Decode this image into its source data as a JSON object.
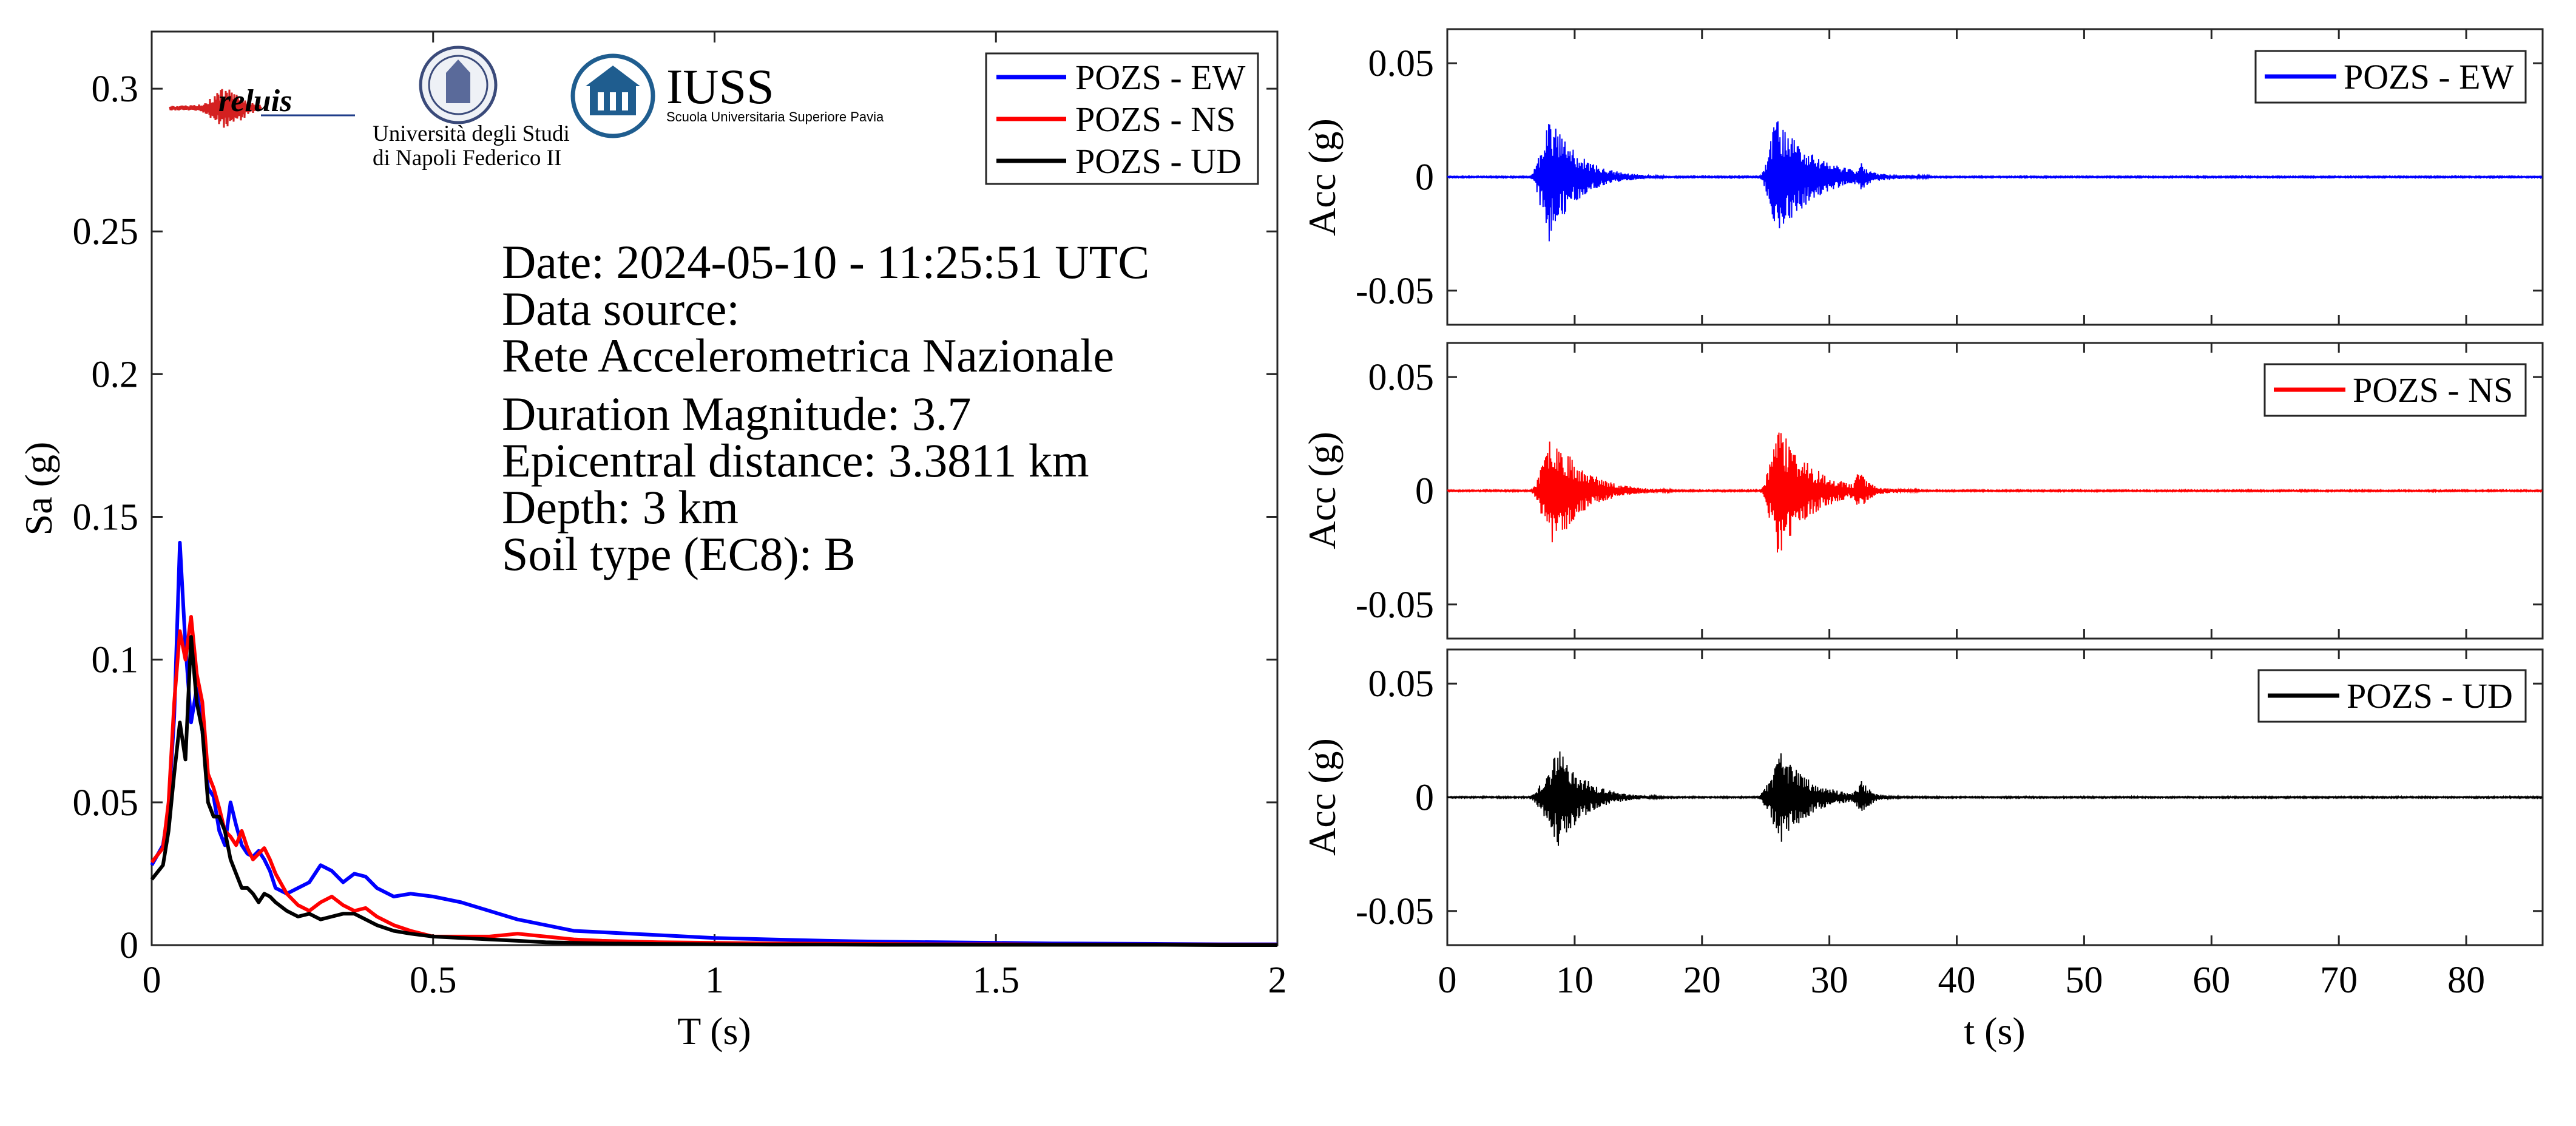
{
  "chart_data": [
    {
      "id": "spectra",
      "type": "line",
      "xlabel": "T (s)",
      "ylabel": "Sa (g)",
      "xlim": [
        0,
        2
      ],
      "ylim": [
        0,
        0.32
      ],
      "xticks": [
        0,
        0.5,
        1,
        1.5,
        2
      ],
      "xtick_labels": [
        "0",
        "0.5",
        "1",
        "1.5",
        "2"
      ],
      "yticks": [
        0,
        0.05,
        0.1,
        0.15,
        0.2,
        0.25,
        0.3
      ],
      "ytick_labels": [
        "0",
        "0.05",
        "0.1",
        "0.15",
        "0.2",
        "0.25",
        "0.3"
      ],
      "legend_position": "top-right",
      "grid": false,
      "series": [
        {
          "name": "POZS - EW",
          "color": "#0000ff",
          "x": [
            0,
            0.02,
            0.03,
            0.04,
            0.05,
            0.06,
            0.07,
            0.08,
            0.09,
            0.1,
            0.11,
            0.12,
            0.13,
            0.14,
            0.15,
            0.16,
            0.17,
            0.18,
            0.19,
            0.2,
            0.21,
            0.22,
            0.24,
            0.26,
            0.28,
            0.3,
            0.32,
            0.34,
            0.36,
            0.38,
            0.4,
            0.43,
            0.46,
            0.5,
            0.55,
            0.6,
            0.65,
            0.7,
            0.75,
            0.8,
            0.9,
            1.0,
            1.1,
            1.2,
            1.3,
            1.4,
            1.5,
            1.6,
            1.7,
            1.8,
            1.9,
            2.0
          ],
          "y": [
            0.028,
            0.035,
            0.048,
            0.08,
            0.141,
            0.105,
            0.078,
            0.09,
            0.075,
            0.055,
            0.052,
            0.04,
            0.035,
            0.05,
            0.042,
            0.035,
            0.032,
            0.031,
            0.033,
            0.03,
            0.026,
            0.02,
            0.018,
            0.02,
            0.022,
            0.028,
            0.026,
            0.022,
            0.025,
            0.024,
            0.02,
            0.017,
            0.018,
            0.017,
            0.015,
            0.012,
            0.009,
            0.007,
            0.005,
            0.0045,
            0.0035,
            0.0025,
            0.002,
            0.0015,
            0.0012,
            0.001,
            0.0008,
            0.0006,
            0.0005,
            0.0004,
            0.0003,
            0.0003
          ]
        },
        {
          "name": "POZS - NS",
          "color": "#ff0000",
          "x": [
            0,
            0.02,
            0.03,
            0.04,
            0.05,
            0.06,
            0.07,
            0.08,
            0.09,
            0.1,
            0.11,
            0.12,
            0.13,
            0.14,
            0.15,
            0.16,
            0.17,
            0.18,
            0.19,
            0.2,
            0.21,
            0.22,
            0.24,
            0.26,
            0.28,
            0.3,
            0.32,
            0.34,
            0.36,
            0.38,
            0.4,
            0.43,
            0.46,
            0.5,
            0.55,
            0.6,
            0.65,
            0.7,
            0.75,
            0.8,
            0.9,
            1.0,
            1.1,
            1.2,
            1.3,
            1.4,
            1.5,
            1.6,
            1.7,
            1.8,
            1.9,
            2.0
          ],
          "y": [
            0.029,
            0.034,
            0.05,
            0.085,
            0.11,
            0.1,
            0.115,
            0.095,
            0.085,
            0.06,
            0.055,
            0.048,
            0.04,
            0.038,
            0.035,
            0.04,
            0.034,
            0.03,
            0.032,
            0.034,
            0.03,
            0.025,
            0.018,
            0.014,
            0.012,
            0.015,
            0.017,
            0.014,
            0.012,
            0.013,
            0.01,
            0.007,
            0.005,
            0.003,
            0.003,
            0.003,
            0.004,
            0.003,
            0.002,
            0.0015,
            0.001,
            0.0008,
            0.0006,
            0.0005,
            0.0004,
            0.0003,
            0.0003,
            0.0002,
            0.0002,
            0.0002,
            0.0001,
            0.0001
          ]
        },
        {
          "name": "POZS - UD",
          "color": "#000000",
          "x": [
            0,
            0.02,
            0.03,
            0.04,
            0.05,
            0.06,
            0.07,
            0.08,
            0.09,
            0.1,
            0.11,
            0.12,
            0.13,
            0.14,
            0.15,
            0.16,
            0.17,
            0.18,
            0.19,
            0.2,
            0.21,
            0.22,
            0.24,
            0.26,
            0.28,
            0.3,
            0.32,
            0.34,
            0.36,
            0.38,
            0.4,
            0.43,
            0.46,
            0.5,
            0.55,
            0.6,
            0.65,
            0.7,
            0.75,
            0.8,
            0.9,
            1.0,
            1.1,
            1.2,
            1.3,
            1.4,
            1.5,
            1.6,
            1.7,
            1.8,
            1.9,
            2.0
          ],
          "y": [
            0.023,
            0.028,
            0.04,
            0.06,
            0.078,
            0.065,
            0.108,
            0.085,
            0.075,
            0.05,
            0.045,
            0.045,
            0.04,
            0.03,
            0.025,
            0.02,
            0.02,
            0.018,
            0.015,
            0.018,
            0.017,
            0.015,
            0.012,
            0.01,
            0.011,
            0.009,
            0.01,
            0.011,
            0.011,
            0.009,
            0.007,
            0.005,
            0.004,
            0.003,
            0.0025,
            0.002,
            0.0015,
            0.001,
            0.0008,
            0.0006,
            0.0004,
            0.0003,
            0.0002,
            0.0002,
            0.0001,
            0.0001,
            0.0001,
            0.0001,
            0.0001,
            0.0001,
            0.0,
            0.0
          ]
        }
      ],
      "annotations": [
        "Date: 2024-05-10 - 11:25:51 UTC",
        "Data source:",
        "Rete Accelerometrica Nazionale",
        "Duration Magnitude: 3.7",
        "Epicentral distance: 3.3811 km",
        "Depth: 3 km",
        "Soil type (EC8): B"
      ]
    },
    {
      "id": "acc-ew",
      "type": "line",
      "ylabel": "Acc (g)",
      "xlim": [
        0,
        86
      ],
      "ylim": [
        -0.065,
        0.065
      ],
      "yticks": [
        -0.05,
        0,
        0.05
      ],
      "ytick_labels": [
        "-0.05",
        "0",
        "0.05"
      ],
      "legend_position": "top-right",
      "series": [
        {
          "name": "POZS - EW",
          "color": "#0000ff",
          "bursts": [
            {
              "start": 6.5,
              "peak_t": 7.9,
              "end": 17,
              "peak_pos": 0.025,
              "peak_neg": -0.03
            },
            {
              "start": 24.5,
              "peak_t": 25.8,
              "end": 38,
              "peak_pos": 0.022,
              "peak_neg": -0.028
            },
            {
              "start": 31.5,
              "peak_t": 32.4,
              "end": 36,
              "peak_pos": 0.007,
              "peak_neg": -0.006
            }
          ]
        }
      ]
    },
    {
      "id": "acc-ns",
      "type": "line",
      "ylabel": "Acc (g)",
      "xlim": [
        0,
        86
      ],
      "ylim": [
        -0.065,
        0.065
      ],
      "yticks": [
        -0.05,
        0,
        0.05
      ],
      "ytick_labels": [
        "-0.05",
        "0",
        "0.05"
      ],
      "legend_position": "top-right",
      "series": [
        {
          "name": "POZS - NS",
          "color": "#ff0000",
          "bursts": [
            {
              "start": 6.5,
              "peak_t": 8.2,
              "end": 18,
              "peak_pos": 0.024,
              "peak_neg": -0.028
            },
            {
              "start": 24.5,
              "peak_t": 25.9,
              "end": 37,
              "peak_pos": 0.025,
              "peak_neg": -0.03
            },
            {
              "start": 31.5,
              "peak_t": 32.3,
              "end": 36,
              "peak_pos": 0.01,
              "peak_neg": -0.009
            }
          ]
        }
      ]
    },
    {
      "id": "acc-ud",
      "type": "line",
      "xlabel": "t (s)",
      "ylabel": "Acc (g)",
      "xlim": [
        0,
        86
      ],
      "ylim": [
        -0.065,
        0.065
      ],
      "xticks": [
        0,
        10,
        20,
        30,
        40,
        50,
        60,
        70,
        80
      ],
      "xtick_labels": [
        "0",
        "10",
        "20",
        "30",
        "40",
        "50",
        "60",
        "70",
        "80"
      ],
      "yticks": [
        -0.05,
        0,
        0.05
      ],
      "ytick_labels": [
        "-0.05",
        "0",
        "0.05"
      ],
      "legend_position": "top-right",
      "series": [
        {
          "name": "POZS - UD",
          "color": "#000000",
          "bursts": [
            {
              "start": 6.3,
              "peak_t": 8.8,
              "end": 17,
              "peak_pos": 0.023,
              "peak_neg": -0.022
            },
            {
              "start": 24.3,
              "peak_t": 26.2,
              "end": 36,
              "peak_pos": 0.021,
              "peak_neg": -0.02
            },
            {
              "start": 31.5,
              "peak_t": 32.5,
              "end": 36,
              "peak_pos": 0.008,
              "peak_neg": -0.007
            }
          ]
        }
      ]
    }
  ],
  "logos": {
    "reluis": "reluis",
    "unina_line1": "Università degli Studi",
    "unina_line2": "di Napoli Federico II",
    "iuss_name": "IUSS",
    "iuss_subtitle": "Scuola Universitaria Superiore Pavia"
  },
  "colors": {
    "ew": "#0000ff",
    "ns": "#ff0000",
    "ud": "#000000",
    "iuss": "#1f5d8f",
    "reluis_blue": "#1f3d8a"
  }
}
